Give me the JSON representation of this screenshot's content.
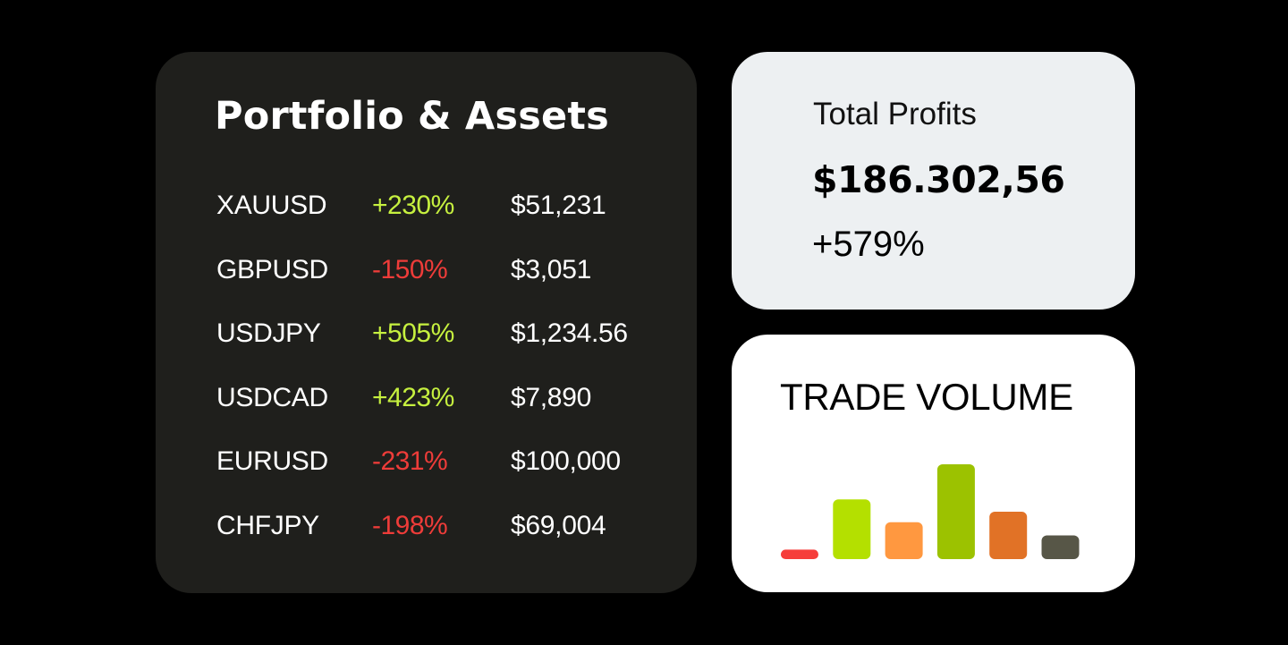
{
  "portfolio": {
    "title": "Portfolio & Assets",
    "assets": [
      {
        "symbol": "XAUUSD",
        "change": "+230%",
        "amount": "$51,231"
      },
      {
        "symbol": "GBPUSD",
        "change": "-150%",
        "amount": "$3,051"
      },
      {
        "symbol": "USDJPY",
        "change": "+505%",
        "amount": "$1,234.56"
      },
      {
        "symbol": "USDCAD",
        "change": "+423%",
        "amount": "$7,890"
      },
      {
        "symbol": "EURUSD",
        "change": "-231%",
        "amount": "$100,000"
      },
      {
        "symbol": "CHFJPY",
        "change": "-198%",
        "amount": "$69,004"
      }
    ],
    "up_color": "#c6f03f",
    "down_color": "#ee3c39"
  },
  "profits": {
    "label": "Total Profits",
    "value": "$186.302,56",
    "change": "+579%"
  },
  "volume": {
    "title": "TRADE VOLUME",
    "chart_data": {
      "type": "bar",
      "values": [
        0.1,
        0.63,
        0.39,
        1.0,
        0.5,
        0.25
      ],
      "colors": [
        "#f63d3a",
        "#b4e000",
        "#ff9840",
        "#9cc200",
        "#e17226",
        "#575647"
      ],
      "grid": false,
      "axes": false
    }
  }
}
